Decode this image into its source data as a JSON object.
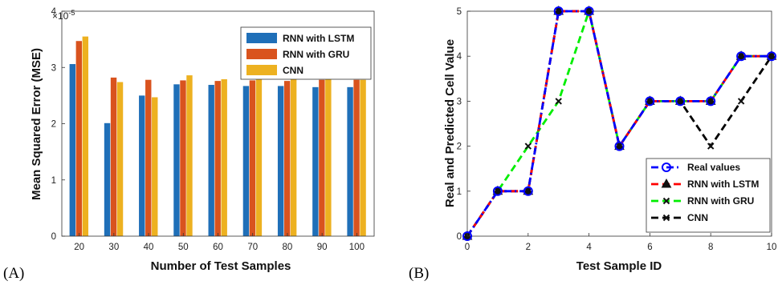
{
  "panels": {
    "left_label": "(A)",
    "right_label": "(B)"
  },
  "chart_data": [
    {
      "type": "bar",
      "title": "",
      "xlabel": "Number of Test Samples",
      "ylabel": "Mean Squared Error (MSE)",
      "y_multiplier_label": "×10",
      "y_multiplier_exponent": "-5",
      "categories": [
        "20",
        "30",
        "40",
        "50",
        "60",
        "70",
        "80",
        "90",
        "100"
      ],
      "series": [
        {
          "name": "RNN with LSTM",
          "color": "#1f6fb8",
          "values": [
            3.06,
            2.01,
            2.5,
            2.7,
            2.69,
            2.67,
            2.67,
            2.65,
            2.65
          ]
        },
        {
          "name": "RNN with GRU",
          "color": "#d9531e",
          "values": [
            3.47,
            2.82,
            2.78,
            2.77,
            2.76,
            2.77,
            2.76,
            2.78,
            2.78
          ]
        },
        {
          "name": "CNN",
          "color": "#edb120",
          "values": [
            3.55,
            2.74,
            2.47,
            2.86,
            2.79,
            2.81,
            2.87,
            2.81,
            2.78
          ]
        }
      ],
      "ylim": [
        0,
        4
      ],
      "yticks": [
        "0",
        "1",
        "2",
        "3",
        "4"
      ],
      "grid": false,
      "legend_position": "top-right"
    },
    {
      "type": "line",
      "title": "",
      "xlabel": "Test Sample ID",
      "ylabel": "Real and Predicted Cell Value",
      "x": [
        0,
        1,
        2,
        3,
        4,
        5,
        6,
        7,
        8,
        9,
        10
      ],
      "xlim": [
        0,
        10
      ],
      "ylim": [
        0,
        5
      ],
      "xticks": [
        "0",
        "2",
        "4",
        "6",
        "8",
        "10"
      ],
      "yticks": [
        "0",
        "1",
        "2",
        "3",
        "4",
        "5"
      ],
      "series": [
        {
          "name": "Real values",
          "color": "#0000ff",
          "style": "dash-dot",
          "marker": "circle",
          "values": [
            0,
            1,
            1,
            5,
            5,
            2,
            3,
            3,
            3,
            4,
            4
          ]
        },
        {
          "name": "RNN with LSTM",
          "color": "#ff0000",
          "style": "dashed",
          "marker": "triangle",
          "values": [
            0,
            1,
            1,
            5,
            5,
            2,
            3,
            3,
            3,
            4,
            4
          ]
        },
        {
          "name": "RNN with GRU",
          "color": "#00ee00",
          "style": "dashed",
          "marker": "x",
          "values": [
            0,
            1,
            2,
            3,
            5,
            2,
            3,
            3,
            3,
            4,
            4
          ]
        },
        {
          "name": "CNN",
          "color": "#000000",
          "style": "dashed",
          "marker": "x",
          "values": [
            0,
            1,
            1,
            5,
            5,
            2,
            3,
            3,
            2,
            3,
            4
          ]
        }
      ],
      "grid": false,
      "legend_position": "bottom-right"
    }
  ]
}
